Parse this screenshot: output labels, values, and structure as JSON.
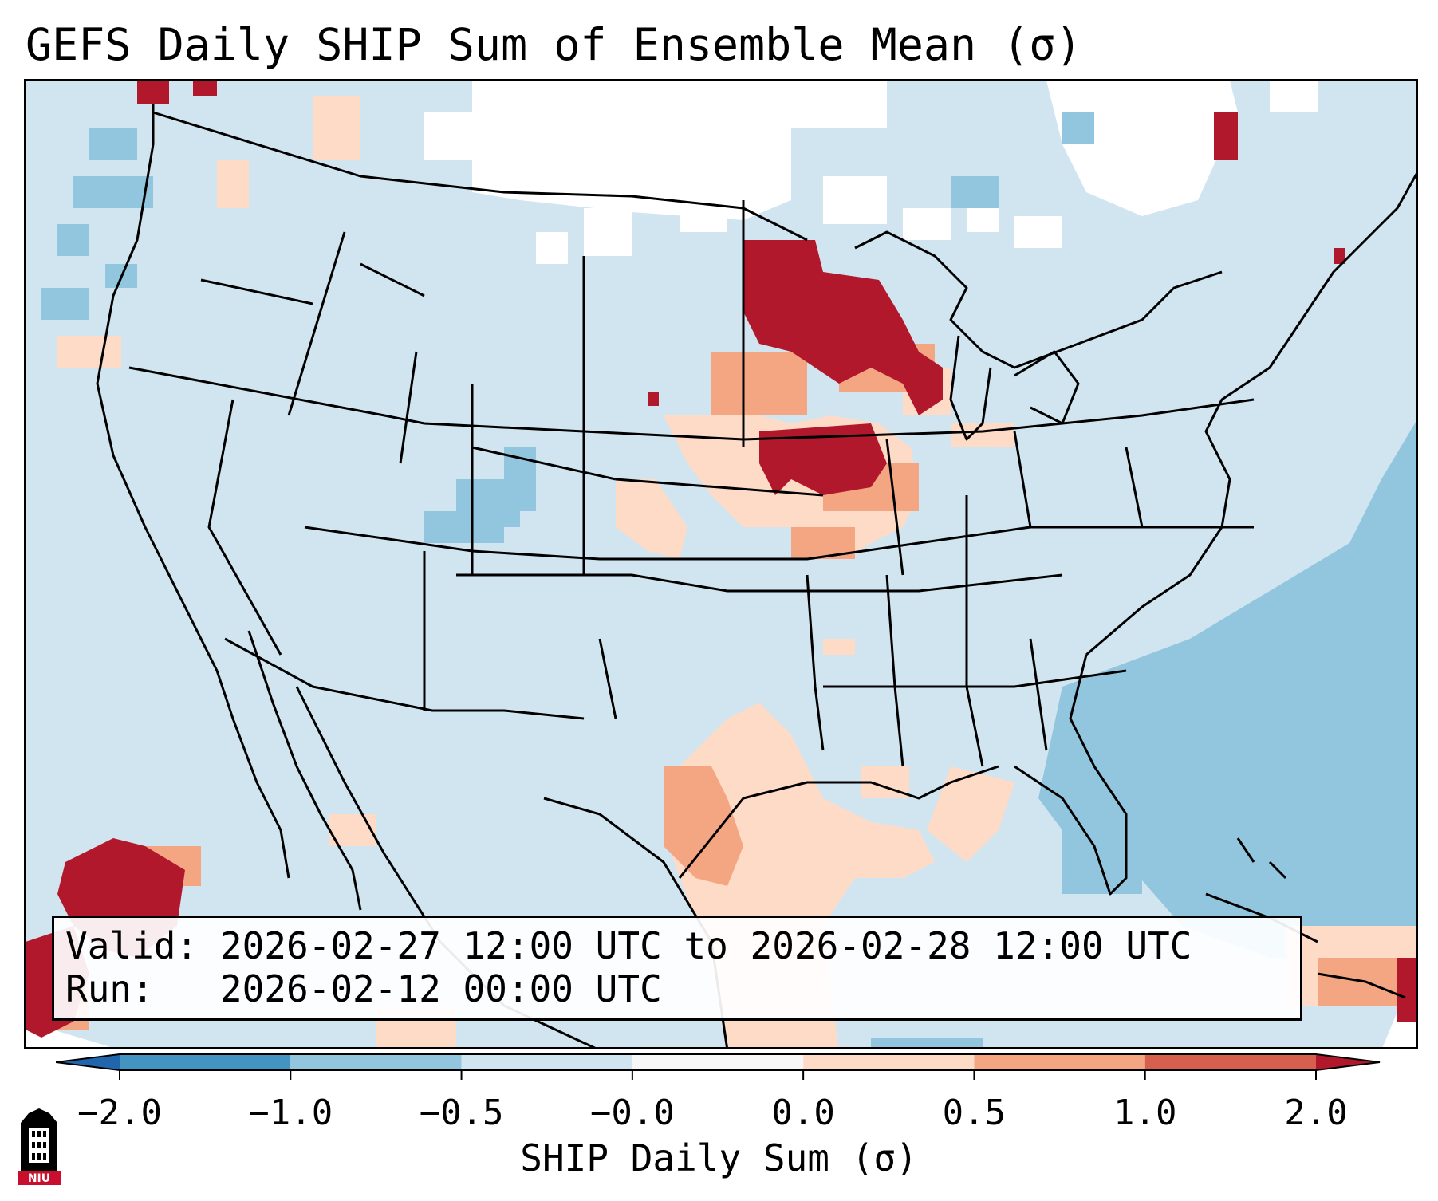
{
  "title": "GEFS Daily SHIP Sum of Ensemble Mean (σ)",
  "info": {
    "valid_label": "Valid:",
    "valid_value": "2026-02-27 12:00 UTC to 2026-02-28 12:00 UTC",
    "run_label": "Run:",
    "run_value": "2026-02-12 00:00 UTC"
  },
  "colorbar": {
    "label": "SHIP Daily Sum (σ)",
    "tick_labels": [
      "−2.0",
      "−1.0",
      "−0.5",
      "−0.0",
      "0.0",
      "0.5",
      "1.0",
      "2.0"
    ],
    "bins": [
      {
        "color": "#4393c3"
      },
      {
        "color": "#92c5de"
      },
      {
        "color": "#d1e5f0"
      },
      {
        "color": "#f7f7f7"
      },
      {
        "color": "#fddbc7"
      },
      {
        "color": "#f4a582"
      },
      {
        "color": "#d6604d"
      }
    ],
    "under_color": "#2166ac",
    "over_color": "#b2182b"
  },
  "colors": {
    "background_field": "#d1e5f0",
    "near_zero": "#ffffff",
    "moderate_negative": "#92c5de",
    "light_positive": "#fddbc7",
    "moderate_positive": "#f4a582",
    "high_positive": "#b2182b"
  },
  "logo": {
    "name": "niu-logo",
    "text": "NIU"
  }
}
